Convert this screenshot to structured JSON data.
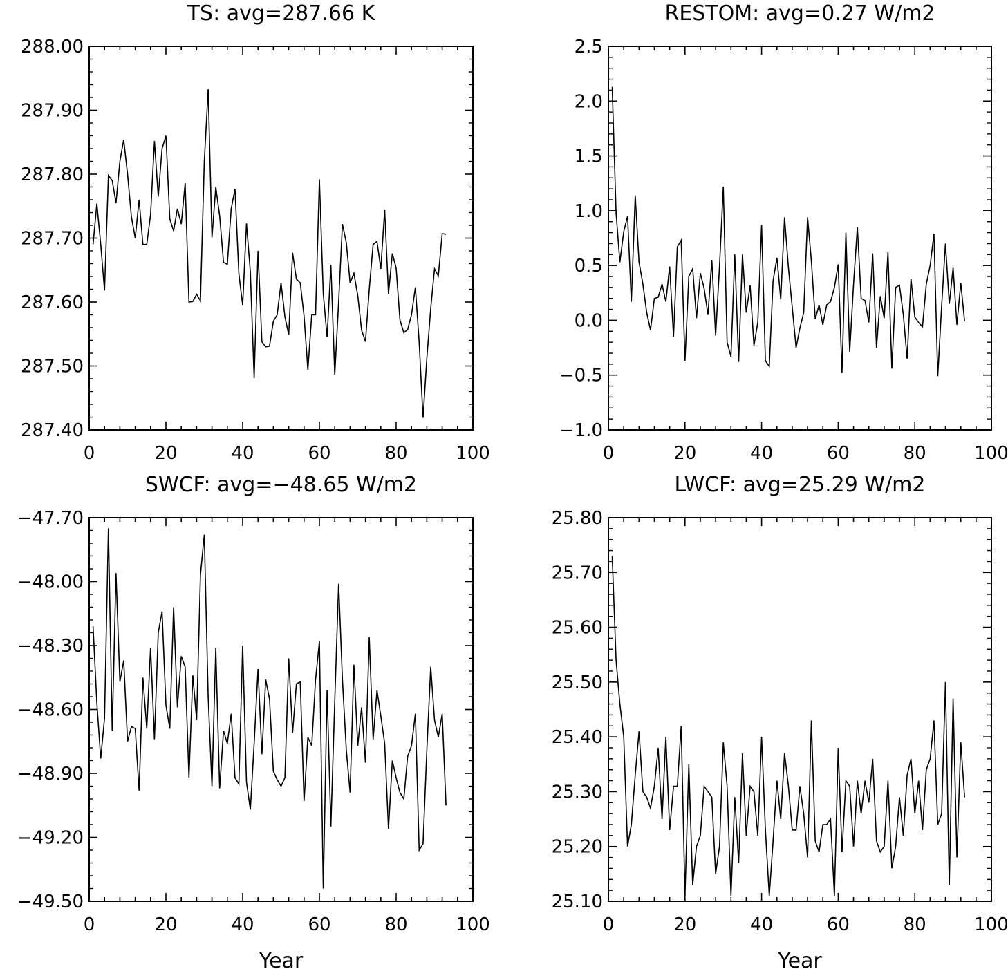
{
  "chart_data": [
    {
      "type": "line",
      "title": "TS: avg=287.66 K",
      "xlabel": "",
      "ylabel": "",
      "xlim": [
        0,
        100
      ],
      "ylim": [
        287.4,
        288.0
      ],
      "xticks": [
        0,
        20,
        40,
        60,
        80,
        100
      ],
      "xtick_labels": [
        "0",
        "20",
        "40",
        "60",
        "80",
        "100"
      ],
      "yticks": [
        287.4,
        287.5,
        287.6,
        287.7,
        287.8,
        287.9,
        288.0
      ],
      "ytick_labels": [
        "287.40",
        "287.50",
        "287.60",
        "287.70",
        "287.80",
        "287.90",
        "288.00"
      ],
      "grid": false,
      "line_color": "#000000",
      "x": [
        1,
        2,
        3,
        4,
        5,
        6,
        7,
        8,
        9,
        10,
        11,
        12,
        13,
        14,
        15,
        16,
        17,
        18,
        19,
        20,
        21,
        22,
        23,
        24,
        25,
        26,
        27,
        28,
        29,
        30,
        31,
        32,
        33,
        34,
        35,
        36,
        37,
        38,
        39,
        40,
        41,
        42,
        43,
        44,
        45,
        46,
        47,
        48,
        49,
        50,
        51,
        52,
        53,
        54,
        55,
        56,
        57,
        58,
        59,
        60,
        61,
        62,
        63,
        64,
        65,
        66,
        67,
        68,
        69,
        70,
        71,
        72,
        73,
        74,
        75,
        76,
        77,
        78,
        79,
        80,
        81,
        82,
        83,
        84,
        85,
        86,
        87,
        88,
        89,
        90,
        91,
        92,
        93
      ],
      "values": [
        287.69,
        287.754,
        287.69,
        287.618,
        287.798,
        287.79,
        287.755,
        287.82,
        287.854,
        287.8,
        287.733,
        287.7,
        287.76,
        287.69,
        287.69,
        287.737,
        287.852,
        287.765,
        287.84,
        287.86,
        287.73,
        287.711,
        287.746,
        287.722,
        287.786,
        287.6,
        287.601,
        287.612,
        287.602,
        287.82,
        287.933,
        287.701,
        287.78,
        287.735,
        287.662,
        287.659,
        287.746,
        287.777,
        287.644,
        287.595,
        287.723,
        287.647,
        287.481,
        287.68,
        287.538,
        287.53,
        287.531,
        287.57,
        287.58,
        287.63,
        287.577,
        287.549,
        287.677,
        287.636,
        287.63,
        287.578,
        287.494,
        287.58,
        287.58,
        287.792,
        287.613,
        287.545,
        287.658,
        287.486,
        287.6,
        287.722,
        287.693,
        287.63,
        287.645,
        287.61,
        287.556,
        287.538,
        287.62,
        287.69,
        287.695,
        287.652,
        287.744,
        287.613,
        287.676,
        287.653,
        287.572,
        287.552,
        287.557,
        287.58,
        287.623,
        287.537,
        287.419,
        287.512,
        287.59,
        287.652,
        287.641,
        287.707,
        287.706
      ]
    },
    {
      "type": "line",
      "title": "RESTOM: avg=0.27 W/m2",
      "xlabel": "",
      "ylabel": "",
      "xlim": [
        0,
        100
      ],
      "ylim": [
        -1.0,
        2.5
      ],
      "xticks": [
        0,
        20,
        40,
        60,
        80,
        100
      ],
      "xtick_labels": [
        "0",
        "20",
        "40",
        "60",
        "80",
        "100"
      ],
      "yticks": [
        -1.0,
        -0.5,
        0.0,
        0.5,
        1.0,
        1.5,
        2.0,
        2.5
      ],
      "ytick_labels": [
        "−1.0",
        "−0.5",
        "0.0",
        "0.5",
        "1.0",
        "1.5",
        "2.0",
        "2.5"
      ],
      "grid": false,
      "line_color": "#000000",
      "x": [
        1,
        2,
        3,
        4,
        5,
        6,
        7,
        8,
        9,
        10,
        11,
        12,
        13,
        14,
        15,
        16,
        17,
        18,
        19,
        20,
        21,
        22,
        23,
        24,
        25,
        26,
        27,
        28,
        29,
        30,
        31,
        32,
        33,
        34,
        35,
        36,
        37,
        38,
        39,
        40,
        41,
        42,
        43,
        44,
        45,
        46,
        47,
        48,
        49,
        50,
        51,
        52,
        53,
        54,
        55,
        56,
        57,
        58,
        59,
        60,
        61,
        62,
        63,
        64,
        65,
        66,
        67,
        68,
        69,
        70,
        71,
        72,
        73,
        74,
        75,
        76,
        77,
        78,
        79,
        80,
        81,
        82,
        83,
        84,
        85,
        86,
        87,
        88,
        89,
        90,
        91,
        92,
        93
      ],
      "values": [
        2.13,
        0.98,
        0.53,
        0.81,
        0.95,
        0.17,
        1.14,
        0.53,
        0.33,
        0.07,
        -0.09,
        0.2,
        0.21,
        0.33,
        0.17,
        0.49,
        -0.15,
        0.67,
        0.73,
        -0.37,
        0.4,
        0.47,
        0.02,
        0.43,
        0.29,
        0.05,
        0.55,
        -0.14,
        0.49,
        1.22,
        -0.2,
        -0.33,
        0.6,
        -0.38,
        0.6,
        0.07,
        0.32,
        -0.23,
        -0.02,
        0.87,
        -0.37,
        -0.42,
        0.36,
        0.57,
        0.19,
        0.94,
        0.48,
        0.12,
        -0.25,
        -0.07,
        0.07,
        0.94,
        0.54,
        0.01,
        0.14,
        -0.04,
        0.14,
        0.17,
        0.3,
        0.51,
        -0.48,
        0.8,
        -0.29,
        0.33,
        0.85,
        0.2,
        0.18,
        -0.02,
        0.61,
        -0.25,
        0.22,
        0.02,
        0.62,
        -0.44,
        0.3,
        0.32,
        0.05,
        -0.35,
        0.38,
        0.03,
        -0.02,
        -0.06,
        0.33,
        0.5,
        0.79,
        -0.51,
        0.13,
        0.7,
        0.15,
        0.48,
        -0.04,
        0.34,
        -0.01
      ]
    },
    {
      "type": "line",
      "title": "SWCF: avg=−48.65 W/m2",
      "xlabel": "Year",
      "ylabel": "",
      "xlim": [
        0,
        100
      ],
      "ylim": [
        -49.5,
        -47.7
      ],
      "xticks": [
        0,
        20,
        40,
        60,
        80,
        100
      ],
      "xtick_labels": [
        "0",
        "20",
        "40",
        "60",
        "80",
        "100"
      ],
      "yticks": [
        -49.5,
        -49.2,
        -48.9,
        -48.6,
        -48.3,
        -48.0,
        -47.7
      ],
      "ytick_labels": [
        "−49.50",
        "−49.20",
        "−48.90",
        "−48.60",
        "−48.30",
        "−48.00",
        "−47.70"
      ],
      "grid": false,
      "line_color": "#000000",
      "x": [
        1,
        2,
        3,
        4,
        5,
        6,
        7,
        8,
        9,
        10,
        11,
        12,
        13,
        14,
        15,
        16,
        17,
        18,
        19,
        20,
        21,
        22,
        23,
        24,
        25,
        26,
        27,
        28,
        29,
        30,
        31,
        32,
        33,
        34,
        35,
        36,
        37,
        38,
        39,
        40,
        41,
        42,
        43,
        44,
        45,
        46,
        47,
        48,
        49,
        50,
        51,
        52,
        53,
        54,
        55,
        56,
        57,
        58,
        59,
        60,
        61,
        62,
        63,
        64,
        65,
        66,
        67,
        68,
        69,
        70,
        71,
        72,
        73,
        74,
        75,
        76,
        77,
        78,
        79,
        80,
        81,
        82,
        83,
        84,
        85,
        86,
        87,
        88,
        89,
        90,
        91,
        92,
        93
      ],
      "values": [
        -48.21,
        -48.57,
        -48.83,
        -48.64,
        -47.75,
        -48.7,
        -47.96,
        -48.47,
        -48.37,
        -48.75,
        -48.68,
        -48.69,
        -48.98,
        -48.45,
        -48.69,
        -48.31,
        -48.74,
        -48.24,
        -48.14,
        -48.58,
        -48.69,
        -48.12,
        -48.59,
        -48.35,
        -48.4,
        -48.92,
        -48.44,
        -48.65,
        -47.97,
        -47.78,
        -48.54,
        -48.96,
        -48.31,
        -48.97,
        -48.7,
        -48.76,
        -48.62,
        -48.92,
        -48.95,
        -48.3,
        -48.94,
        -49.07,
        -48.76,
        -48.41,
        -48.81,
        -48.46,
        -48.55,
        -48.89,
        -48.93,
        -48.96,
        -48.92,
        -48.36,
        -48.71,
        -48.48,
        -48.47,
        -49.03,
        -48.73,
        -48.77,
        -48.46,
        -48.28,
        -49.44,
        -48.51,
        -49.15,
        -48.56,
        -48.01,
        -48.46,
        -48.79,
        -48.99,
        -48.39,
        -48.77,
        -48.59,
        -48.85,
        -48.26,
        -48.74,
        -48.51,
        -48.63,
        -48.76,
        -49.16,
        -48.84,
        -48.92,
        -48.99,
        -49.02,
        -48.82,
        -48.77,
        -48.62,
        -49.26,
        -49.23,
        -48.79,
        -48.4,
        -48.65,
        -48.73,
        -48.62,
        -49.05
      ]
    },
    {
      "type": "line",
      "title": "LWCF: avg=25.29 W/m2",
      "xlabel": "Year",
      "ylabel": "",
      "xlim": [
        0,
        100
      ],
      "ylim": [
        25.1,
        25.8
      ],
      "xticks": [
        0,
        20,
        40,
        60,
        80,
        100
      ],
      "xtick_labels": [
        "0",
        "20",
        "40",
        "60",
        "80",
        "100"
      ],
      "yticks": [
        25.1,
        25.2,
        25.3,
        25.4,
        25.5,
        25.6,
        25.7,
        25.8
      ],
      "ytick_labels": [
        "25.10",
        "25.20",
        "25.30",
        "25.40",
        "25.50",
        "25.60",
        "25.70",
        "25.80"
      ],
      "grid": false,
      "line_color": "#000000",
      "x": [
        1,
        2,
        3,
        4,
        5,
        6,
        7,
        8,
        9,
        10,
        11,
        12,
        13,
        14,
        15,
        16,
        17,
        18,
        19,
        20,
        21,
        22,
        23,
        24,
        25,
        26,
        27,
        28,
        29,
        30,
        31,
        32,
        33,
        34,
        35,
        36,
        37,
        38,
        39,
        40,
        41,
        42,
        43,
        44,
        45,
        46,
        47,
        48,
        49,
        50,
        51,
        52,
        53,
        54,
        55,
        56,
        57,
        58,
        59,
        60,
        61,
        62,
        63,
        64,
        65,
        66,
        67,
        68,
        69,
        70,
        71,
        72,
        73,
        74,
        75,
        76,
        77,
        78,
        79,
        80,
        81,
        82,
        83,
        84,
        85,
        86,
        87,
        88,
        89,
        90,
        91,
        92,
        93
      ],
      "values": [
        25.73,
        25.54,
        25.46,
        25.4,
        25.2,
        25.24,
        25.33,
        25.41,
        25.3,
        25.29,
        25.27,
        25.31,
        25.38,
        25.25,
        25.4,
        25.23,
        25.31,
        25.31,
        25.42,
        25.11,
        25.35,
        25.13,
        25.2,
        25.22,
        25.31,
        25.3,
        25.29,
        25.15,
        25.2,
        25.39,
        25.31,
        25.11,
        25.29,
        25.17,
        25.37,
        25.22,
        25.31,
        25.3,
        25.22,
        25.4,
        25.23,
        25.11,
        25.21,
        25.32,
        25.25,
        25.37,
        25.31,
        25.23,
        25.23,
        25.31,
        25.26,
        25.18,
        25.43,
        25.21,
        25.19,
        25.24,
        25.24,
        25.25,
        25.11,
        25.38,
        25.19,
        25.32,
        25.31,
        25.2,
        25.32,
        25.26,
        25.32,
        25.28,
        25.36,
        25.21,
        25.19,
        25.2,
        25.32,
        25.16,
        25.2,
        25.29,
        25.22,
        25.33,
        25.36,
        25.26,
        25.32,
        25.23,
        25.34,
        25.36,
        25.43,
        25.24,
        25.26,
        25.5,
        25.13,
        25.47,
        25.18,
        25.39,
        25.29
      ]
    }
  ]
}
